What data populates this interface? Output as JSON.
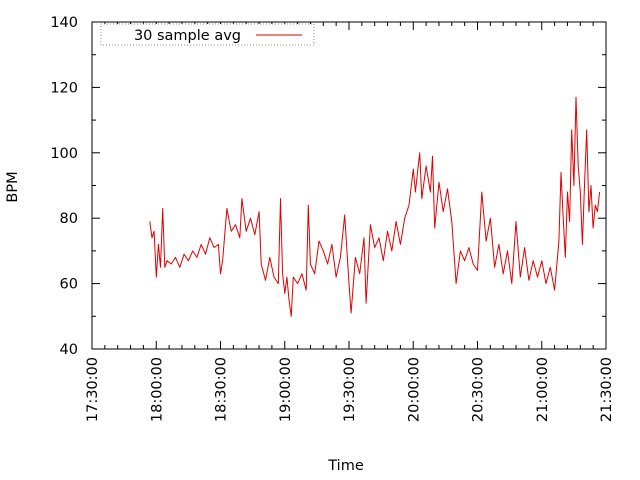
{
  "chart_data": {
    "type": "line",
    "xlabel": "Time",
    "ylabel": "BPM",
    "xlim": [
      "17:30:00",
      "21:30:00"
    ],
    "ylim": [
      40,
      140
    ],
    "x_ticks": [
      "17:30:00",
      "18:00:00",
      "18:30:00",
      "19:00:00",
      "19:30:00",
      "20:00:00",
      "20:30:00",
      "21:00:00",
      "21:30:00"
    ],
    "y_ticks": [
      40,
      60,
      80,
      100,
      120,
      140
    ],
    "grid": false,
    "legend_position": "top-left",
    "series": [
      {
        "name": "30 sample avg",
        "color": "#e00000",
        "points": [
          [
            "17:57:00",
            79
          ],
          [
            "17:58:00",
            74
          ],
          [
            "17:59:00",
            76
          ],
          [
            "18:00:00",
            62
          ],
          [
            "18:01:00",
            72
          ],
          [
            "18:02:00",
            65
          ],
          [
            "18:03:00",
            83
          ],
          [
            "18:04:00",
            65
          ],
          [
            "18:05:00",
            67
          ],
          [
            "18:07:00",
            66
          ],
          [
            "18:09:00",
            68
          ],
          [
            "18:11:00",
            65
          ],
          [
            "18:13:00",
            69
          ],
          [
            "18:15:00",
            67
          ],
          [
            "18:17:00",
            70
          ],
          [
            "18:19:00",
            68
          ],
          [
            "18:21:00",
            72
          ],
          [
            "18:23:00",
            69
          ],
          [
            "18:25:00",
            74
          ],
          [
            "18:27:00",
            71
          ],
          [
            "18:29:00",
            72
          ],
          [
            "18:30:00",
            63
          ],
          [
            "18:31:00",
            67
          ],
          [
            "18:33:00",
            83
          ],
          [
            "18:35:00",
            76
          ],
          [
            "18:37:00",
            78
          ],
          [
            "18:39:00",
            74
          ],
          [
            "18:40:00",
            86
          ],
          [
            "18:42:00",
            76
          ],
          [
            "18:44:00",
            80
          ],
          [
            "18:46:00",
            75
          ],
          [
            "18:48:00",
            82
          ],
          [
            "18:49:00",
            66
          ],
          [
            "18:51:00",
            61
          ],
          [
            "18:53:00",
            68
          ],
          [
            "18:55:00",
            62
          ],
          [
            "18:57:00",
            60
          ],
          [
            "18:58:00",
            86
          ],
          [
            "18:59:00",
            63
          ],
          [
            "19:00:00",
            57
          ],
          [
            "19:01:00",
            62
          ],
          [
            "19:02:00",
            55
          ],
          [
            "19:03:00",
            50
          ],
          [
            "19:04:00",
            62
          ],
          [
            "19:06:00",
            60
          ],
          [
            "19:08:00",
            63
          ],
          [
            "19:10:00",
            58
          ],
          [
            "19:11:00",
            84
          ],
          [
            "19:12:00",
            66
          ],
          [
            "19:14:00",
            63
          ],
          [
            "19:16:00",
            73
          ],
          [
            "19:18:00",
            70
          ],
          [
            "19:20:00",
            66
          ],
          [
            "19:22:00",
            72
          ],
          [
            "19:24:00",
            62
          ],
          [
            "19:26:00",
            68
          ],
          [
            "19:28:00",
            81
          ],
          [
            "19:30:00",
            60
          ],
          [
            "19:31:00",
            51
          ],
          [
            "19:33:00",
            68
          ],
          [
            "19:35:00",
            63
          ],
          [
            "19:37:00",
            74
          ],
          [
            "19:38:00",
            54
          ],
          [
            "19:40:00",
            78
          ],
          [
            "19:42:00",
            71
          ],
          [
            "19:44:00",
            74
          ],
          [
            "19:46:00",
            67
          ],
          [
            "19:48:00",
            76
          ],
          [
            "19:50:00",
            70
          ],
          [
            "19:52:00",
            79
          ],
          [
            "19:54:00",
            72
          ],
          [
            "19:56:00",
            80
          ],
          [
            "19:58:00",
            84
          ],
          [
            "20:00:00",
            95
          ],
          [
            "20:01:00",
            88
          ],
          [
            "20:03:00",
            100
          ],
          [
            "20:04:00",
            86
          ],
          [
            "20:06:00",
            96
          ],
          [
            "20:08:00",
            88
          ],
          [
            "20:09:00",
            99
          ],
          [
            "20:10:00",
            77
          ],
          [
            "20:12:00",
            91
          ],
          [
            "20:14:00",
            82
          ],
          [
            "20:16:00",
            89
          ],
          [
            "20:18:00",
            79
          ],
          [
            "20:20:00",
            60
          ],
          [
            "20:22:00",
            70
          ],
          [
            "20:24:00",
            67
          ],
          [
            "20:26:00",
            71
          ],
          [
            "20:28:00",
            66
          ],
          [
            "20:30:00",
            64
          ],
          [
            "20:32:00",
            88
          ],
          [
            "20:34:00",
            73
          ],
          [
            "20:36:00",
            80
          ],
          [
            "20:38:00",
            65
          ],
          [
            "20:40:00",
            72
          ],
          [
            "20:42:00",
            63
          ],
          [
            "20:44:00",
            70
          ],
          [
            "20:46:00",
            60
          ],
          [
            "20:48:00",
            79
          ],
          [
            "20:50:00",
            62
          ],
          [
            "20:52:00",
            71
          ],
          [
            "20:54:00",
            61
          ],
          [
            "20:56:00",
            67
          ],
          [
            "20:58:00",
            62
          ],
          [
            "21:00:00",
            67
          ],
          [
            "21:02:00",
            60
          ],
          [
            "21:04:00",
            65
          ],
          [
            "21:06:00",
            58
          ],
          [
            "21:08:00",
            73
          ],
          [
            "21:09:00",
            94
          ],
          [
            "21:10:00",
            80
          ],
          [
            "21:11:00",
            68
          ],
          [
            "21:12:00",
            88
          ],
          [
            "21:13:00",
            79
          ],
          [
            "21:14:00",
            107
          ],
          [
            "21:15:00",
            90
          ],
          [
            "21:16:00",
            117
          ],
          [
            "21:17:00",
            96
          ],
          [
            "21:18:00",
            88
          ],
          [
            "21:19:00",
            72
          ],
          [
            "21:20:00",
            91
          ],
          [
            "21:21:00",
            107
          ],
          [
            "21:22:00",
            82
          ],
          [
            "21:23:00",
            90
          ],
          [
            "21:24:00",
            77
          ],
          [
            "21:25:00",
            84
          ],
          [
            "21:26:00",
            82
          ],
          [
            "21:27:00",
            88
          ]
        ]
      }
    ]
  }
}
